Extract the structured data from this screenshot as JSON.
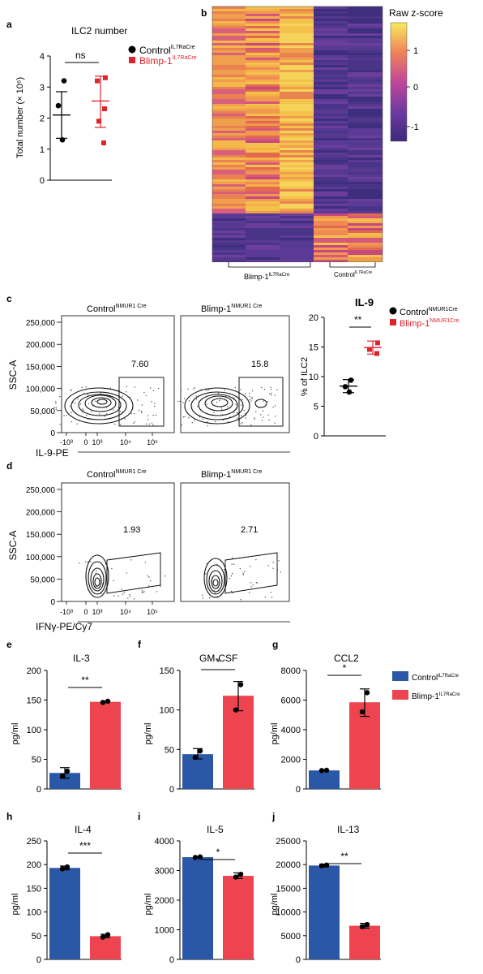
{
  "colors": {
    "control": "#2a58a6",
    "blimp": "#ee4450",
    "red_text": "#e0242b",
    "black": "#000000"
  },
  "panel_labels": [
    "a",
    "b",
    "c",
    "d",
    "e",
    "f",
    "g",
    "h",
    "i",
    "j"
  ],
  "legends": {
    "a": [
      {
        "base": "Control",
        "sup": "IL7RaCre",
        "color": "#000000"
      },
      {
        "base": "Blimp-1",
        "sup": "IL7RaCre",
        "color": "#e0242b"
      }
    ],
    "c": [
      {
        "base": "Control",
        "sup": "NMUR1Cre",
        "color": "#000000"
      },
      {
        "base": "Blimp-1",
        "sup": "NMUR1Cre",
        "color": "#e0242b"
      }
    ],
    "bars": [
      {
        "base": "Control",
        "sup": "IL7RaCre"
      },
      {
        "base": "Blimp-1",
        "sup": "IL7RaCre"
      }
    ]
  },
  "heatmap": {
    "legend_title": "Raw z-score",
    "colorbar_ticks": [
      "1",
      "0",
      "-1"
    ],
    "groups": [
      {
        "base": "Blimp-1",
        "sup": "IL7RaCre"
      },
      {
        "base": "Control",
        "sup": "IL7RaCre"
      }
    ]
  },
  "flow": {
    "y_ticks": [
      "250,000",
      "200,000",
      "150,000",
      "100,000",
      "50,000",
      "0"
    ],
    "x_ticks_c": [
      "-10³",
      "0",
      "10³",
      "10⁴",
      "10⁵"
    ],
    "x_ticks_d": [
      "-10³",
      "0",
      "10³",
      "10⁴",
      "10⁵"
    ],
    "y_label": "SSC-A",
    "x_label_c": "IL-9-PE",
    "x_label_d": "IFNγ-PE/Cy7",
    "c_titles": [
      {
        "base": "Control",
        "sup": "NMUR1 Cre"
      },
      {
        "base": "Blimp-1",
        "sup": "NMUR1 Cre"
      }
    ],
    "d_titles": [
      {
        "base": "Control",
        "sup": "NMUR1 Cre"
      },
      {
        "base": "Blimp-1",
        "sup": "NMUR1 Cre"
      }
    ],
    "c_gate_values": [
      "7.60",
      "15.8"
    ],
    "d_gate_values": [
      "1.93",
      "2.71"
    ]
  },
  "chart_data": [
    {
      "id": "a",
      "type": "scatter",
      "title": "ILC2 number",
      "ylabel": "Total number (× 10⁶)",
      "ylim": [
        0,
        4
      ],
      "y_ticks": [
        0,
        1,
        2,
        3,
        4
      ],
      "significance": "ns",
      "series": [
        {
          "name": "Control",
          "points": [
            3.2,
            2.4,
            1.3
          ],
          "mean": 2.1,
          "sd_low": 1.35,
          "sd_high": 2.85
        },
        {
          "name": "Blimp-1",
          "points": [
            3.3,
            3.2,
            2.3,
            1.9,
            1.2
          ],
          "mean": 2.55,
          "sd_low": 1.7,
          "sd_high": 3.35
        }
      ]
    },
    {
      "id": "c-right",
      "type": "scatter",
      "title": "IL-9",
      "ylabel": "% of ILC2",
      "ylim": [
        0,
        20
      ],
      "y_ticks": [
        0,
        5,
        10,
        15,
        20
      ],
      "significance": "**",
      "series": [
        {
          "name": "Control",
          "points": [
            9.4,
            8.3,
            7.4
          ],
          "mean": 8.4,
          "sd_low": 7.3,
          "sd_high": 9.5
        },
        {
          "name": "Blimp-1",
          "points": [
            15.7,
            14.6,
            13.9
          ],
          "mean": 14.9,
          "sd_low": 13.8,
          "sd_high": 16.0
        }
      ]
    },
    {
      "id": "e",
      "type": "bar",
      "title": "IL-3",
      "ylabel": "pg/ml",
      "ylim": [
        0,
        200
      ],
      "y_ticks": [
        0,
        50,
        100,
        150,
        200
      ],
      "significance": "**",
      "categories": [
        "Control",
        "Blimp-1"
      ],
      "values": [
        27,
        147
      ],
      "err_low": [
        18,
        146
      ],
      "err_high": [
        36,
        148
      ],
      "points": [
        [
          22,
          30
        ],
        [
          146,
          148
        ]
      ]
    },
    {
      "id": "f",
      "type": "bar",
      "title": "GM-CSF",
      "ylabel": "pg/ml",
      "ylim": [
        0,
        150
      ],
      "y_ticks": [
        0,
        50,
        100,
        150
      ],
      "significance": "*",
      "categories": [
        "Control",
        "Blimp-1"
      ],
      "values": [
        44,
        118
      ],
      "err_low": [
        38,
        99
      ],
      "err_high": [
        51,
        136
      ],
      "points": [
        [
          40,
          48
        ],
        [
          100,
          132
        ]
      ]
    },
    {
      "id": "g",
      "type": "bar",
      "title": "CCL2",
      "ylabel": "pg/ml",
      "ylim": [
        0,
        8000
      ],
      "y_ticks": [
        0,
        2000,
        4000,
        6000,
        8000
      ],
      "significance": "*",
      "categories": [
        "Control",
        "Blimp-1"
      ],
      "values": [
        1250,
        5850
      ],
      "err_low": [
        1230,
        4900
      ],
      "err_high": [
        1270,
        6750
      ],
      "points": [
        [
          1240,
          1260
        ],
        [
          5200,
          6500
        ]
      ]
    },
    {
      "id": "h",
      "type": "bar",
      "title": "IL-4",
      "ylabel": "pg/ml",
      "ylim": [
        0,
        250
      ],
      "y_ticks": [
        0,
        50,
        100,
        150,
        200,
        250
      ],
      "significance": "***",
      "categories": [
        "Control",
        "Blimp-1"
      ],
      "values": [
        193,
        49
      ],
      "err_low": [
        189,
        46
      ],
      "err_high": [
        197,
        53
      ],
      "points": [
        [
          191,
          195
        ],
        [
          47,
          52
        ]
      ]
    },
    {
      "id": "i",
      "type": "bar",
      "title": "IL-5",
      "ylabel": "pg/ml",
      "ylim": [
        0,
        4000
      ],
      "y_ticks": [
        0,
        1000,
        2000,
        3000,
        4000
      ],
      "significance": "*",
      "categories": [
        "Control",
        "Blimp-1"
      ],
      "values": [
        3450,
        2820
      ],
      "err_low": [
        3440,
        2730
      ],
      "err_high": [
        3460,
        2920
      ],
      "points": [
        [
          3440,
          3460
        ],
        [
          2780,
          2870
        ]
      ]
    },
    {
      "id": "j",
      "type": "bar",
      "title": "IL-13",
      "ylabel": "pg/ml",
      "ylim": [
        0,
        25000
      ],
      "y_ticks": [
        0,
        5000,
        10000,
        15000,
        20000,
        25000
      ],
      "significance": "**",
      "categories": [
        "Control",
        "Blimp-1"
      ],
      "values": [
        19800,
        7100
      ],
      "err_low": [
        19500,
        6600
      ],
      "err_high": [
        20100,
        7600
      ],
      "points": [
        [
          19750,
          19900
        ],
        [
          6900,
          7350
        ]
      ]
    }
  ]
}
